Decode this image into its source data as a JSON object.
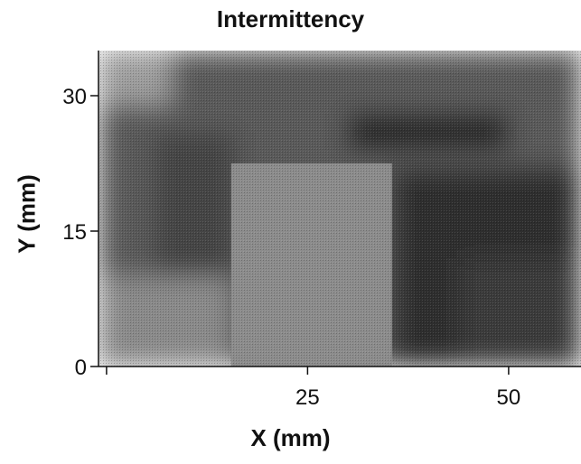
{
  "chart_data": {
    "type": "heatmap",
    "title": "Intermittency",
    "xlabel": "X (mm)",
    "ylabel": "Y (mm)",
    "xlim": [
      -1,
      59
    ],
    "ylim": [
      0,
      35
    ],
    "xticks": [
      {
        "value": 0,
        "label": ""
      },
      {
        "value": 25,
        "label": "25"
      },
      {
        "value": 50,
        "label": "50"
      }
    ],
    "yticks": [
      {
        "value": 0,
        "label": "0"
      },
      {
        "value": 15,
        "label": "15"
      },
      {
        "value": 30,
        "label": "30"
      }
    ],
    "colormap": [
      "#1c1c1c",
      "#9a9a9a"
    ],
    "obstacle": {
      "x": [
        15.5,
        35.5
      ],
      "y": [
        0,
        22.5
      ],
      "color": "#8c8c8c"
    },
    "regions": [
      {
        "x": [
          -1,
          59
        ],
        "y": [
          0,
          35
        ],
        "color": "#5a5a5a"
      },
      {
        "x": [
          -1,
          8
        ],
        "y": [
          29,
          35
        ],
        "color": "#9e9e9e"
      },
      {
        "x": [
          -1,
          15.5
        ],
        "y": [
          0,
          10
        ],
        "color": "#8a8a8a"
      },
      {
        "x": [
          35.5,
          59
        ],
        "y": [
          0,
          22
        ],
        "color": "#2e2e2e"
      },
      {
        "x": [
          30,
          50
        ],
        "y": [
          24,
          28
        ],
        "color": "#262626"
      },
      {
        "x": [
          6,
          16
        ],
        "y": [
          10,
          26
        ],
        "color": "#444444"
      },
      {
        "x": [
          44,
          59
        ],
        "y": [
          0,
          12
        ],
        "color": "#3a3a3a"
      }
    ]
  }
}
